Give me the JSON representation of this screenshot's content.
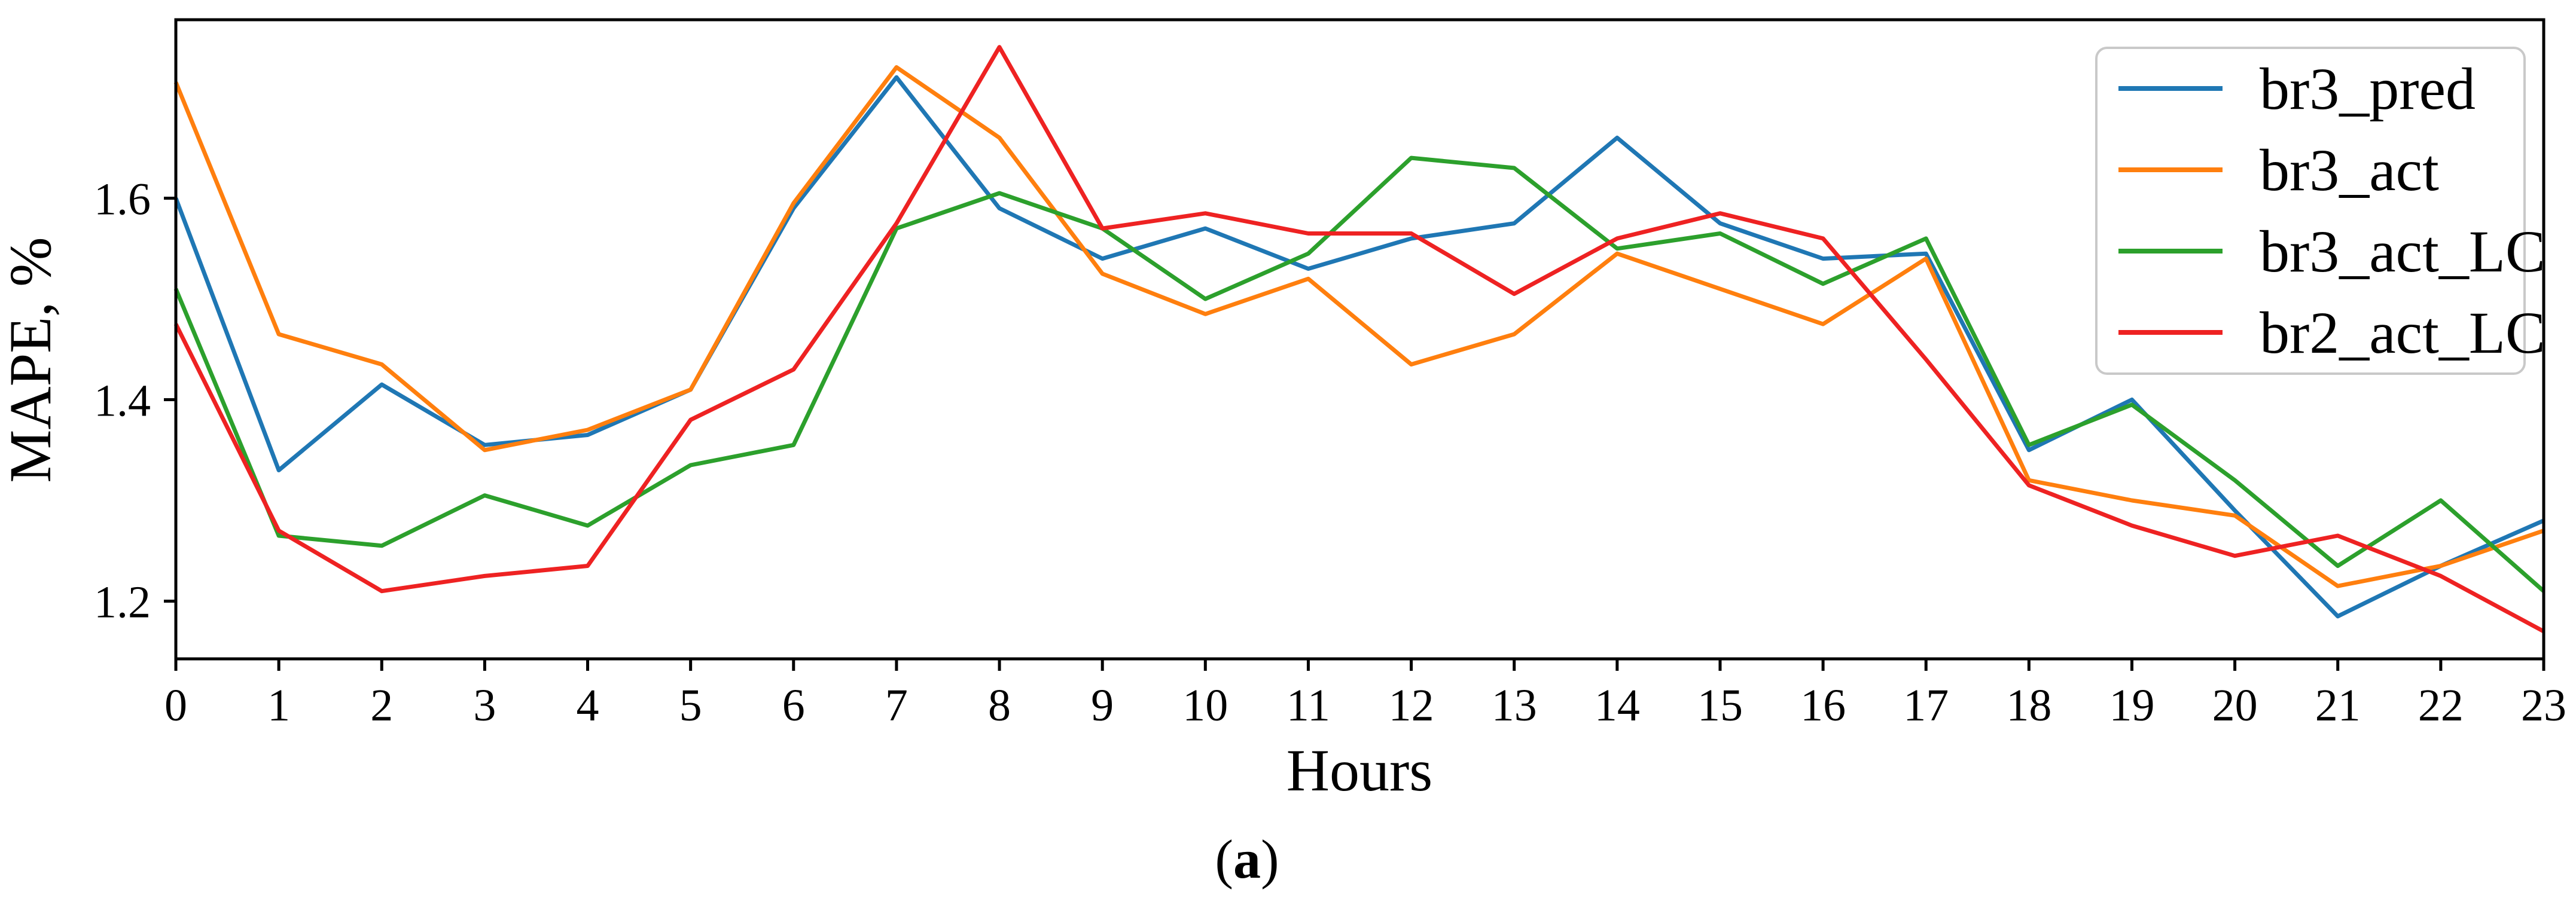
{
  "figure": {
    "background": "#ffffff",
    "caption": "(a)",
    "caption_letter": "a"
  },
  "chart_data": {
    "type": "line",
    "title": "",
    "xlabel": "Hours",
    "ylabel": "MAPE, %",
    "x": [
      0,
      1,
      2,
      3,
      4,
      5,
      6,
      7,
      8,
      9,
      10,
      11,
      12,
      13,
      14,
      15,
      16,
      17,
      18,
      19,
      20,
      21,
      22,
      23
    ],
    "x_tick_labels": [
      "0",
      "1",
      "2",
      "3",
      "4",
      "5",
      "6",
      "7",
      "8",
      "9",
      "10",
      "11",
      "12",
      "13",
      "14",
      "15",
      "16",
      "17",
      "18",
      "19",
      "20",
      "21",
      "22",
      "23"
    ],
    "y_ticks": [
      1.2,
      1.4,
      1.6
    ],
    "y_tick_labels": [
      "1.2",
      "1.4",
      "1.6"
    ],
    "xlim": [
      0,
      23
    ],
    "ylim": [
      1.143,
      1.777
    ],
    "grid": false,
    "legend_position": "upper right",
    "series": [
      {
        "name": "br3_pred",
        "color": "#1f77b4",
        "values": [
          1.6,
          1.33,
          1.415,
          1.355,
          1.365,
          1.41,
          1.59,
          1.72,
          1.59,
          1.54,
          1.57,
          1.53,
          1.56,
          1.575,
          1.66,
          1.575,
          1.54,
          1.545,
          1.35,
          1.4,
          1.29,
          1.185,
          1.235,
          1.28
        ]
      },
      {
        "name": "br3_act",
        "color": "#ff7f0e",
        "values": [
          1.715,
          1.465,
          1.435,
          1.35,
          1.37,
          1.41,
          1.595,
          1.73,
          1.66,
          1.525,
          1.485,
          1.52,
          1.435,
          1.465,
          1.545,
          1.51,
          1.475,
          1.54,
          1.32,
          1.3,
          1.285,
          1.215,
          1.235,
          1.27
        ]
      },
      {
        "name": "br3_act_LC",
        "color": "#2ca02c",
        "values": [
          1.51,
          1.265,
          1.255,
          1.305,
          1.275,
          1.335,
          1.355,
          1.57,
          1.605,
          1.57,
          1.5,
          1.545,
          1.64,
          1.63,
          1.55,
          1.565,
          1.515,
          1.56,
          1.355,
          1.395,
          1.32,
          1.235,
          1.3,
          1.21
        ]
      },
      {
        "name": "br2_act_LC",
        "color": "#ee2222",
        "values": [
          1.475,
          1.27,
          1.21,
          1.225,
          1.235,
          1.38,
          1.43,
          1.575,
          1.75,
          1.57,
          1.585,
          1.565,
          1.565,
          1.505,
          1.56,
          1.585,
          1.56,
          1.44,
          1.315,
          1.275,
          1.245,
          1.265,
          1.225,
          1.17
        ]
      }
    ],
    "styles": {
      "axis_color": "#000000",
      "legend_border_color": "#c9c9c9",
      "legend_background": "#ffffff"
    }
  }
}
